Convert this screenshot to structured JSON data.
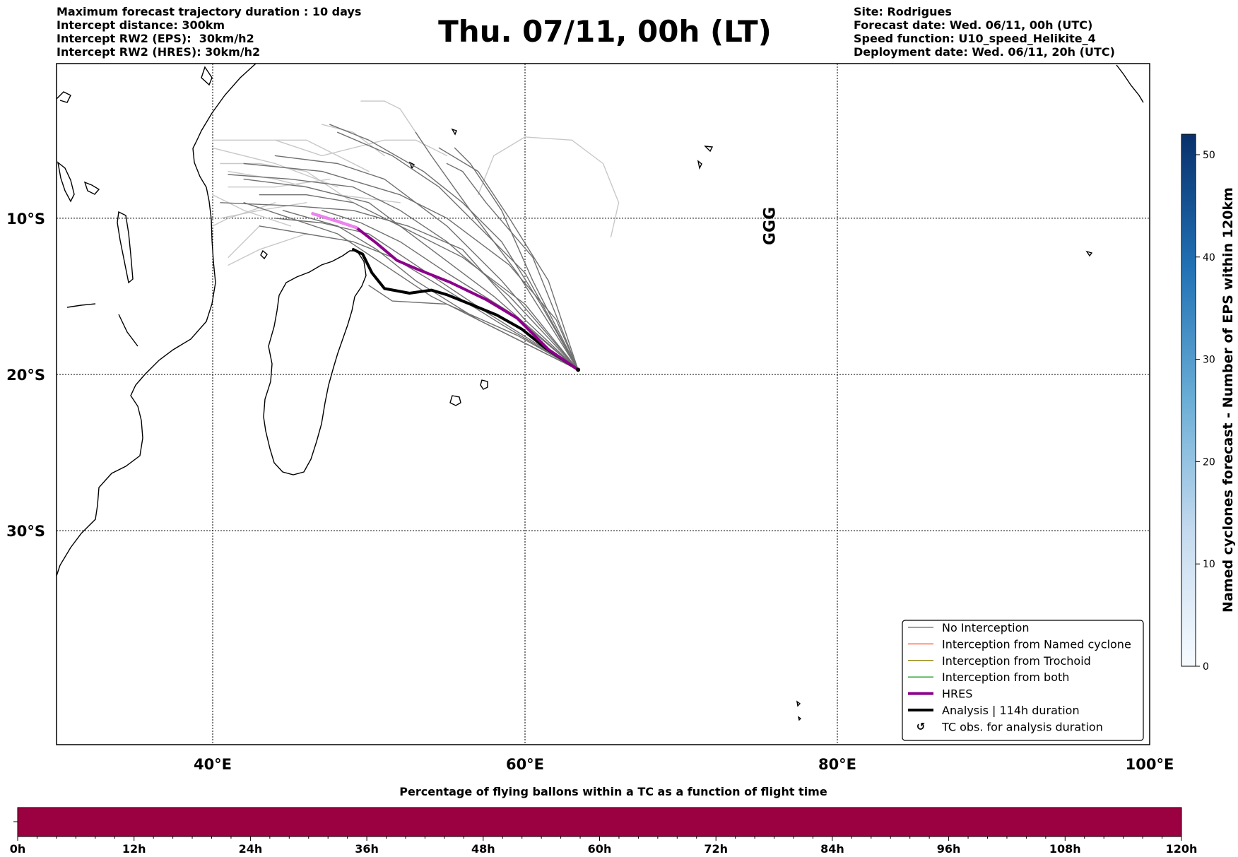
{
  "header": {
    "left_lines": [
      "Maximum forecast trajectory duration : 10 days",
      "Intercept distance: 300km",
      "Intercept RW2 (EPS):  30km/h2",
      "Intercept RW2 (HRES): 30km/h2"
    ],
    "title": "Thu. 07/11, 00h (LT)",
    "right_lines": [
      "Site: Rodrigues",
      "Forecast date: Wed. 06/11, 00h (UTC)",
      "Speed function: U10_speed_Helikite_4",
      "Deployment date: Wed. 06/11, 20h (UTC)"
    ]
  },
  "map": {
    "lon_range": [
      30,
      100
    ],
    "lat_range": [
      -43.7,
      -0.1
    ],
    "lon_ticks": [
      {
        "value": 40,
        "label": "40°E"
      },
      {
        "value": 60,
        "label": "60°E"
      },
      {
        "value": 80,
        "label": "80°E"
      },
      {
        "value": 100,
        "label": "100°E"
      }
    ],
    "lat_ticks": [
      {
        "value": -10,
        "label": "10°S"
      },
      {
        "value": -20,
        "label": "20°S"
      },
      {
        "value": -30,
        "label": "30°S"
      }
    ],
    "deployment_site": {
      "lon": 63.4,
      "lat": -19.7
    },
    "hres_track": [
      [
        63.4,
        -19.7
      ],
      [
        61.5,
        -18.4
      ],
      [
        59.5,
        -16.4
      ],
      [
        57.5,
        -15.2
      ],
      [
        55.2,
        -14.1
      ],
      [
        53.2,
        -13.3
      ],
      [
        51.8,
        -12.7
      ],
      [
        50.5,
        -11.6
      ],
      [
        49.2,
        -10.6
      ],
      [
        48.0,
        -10.2
      ],
      [
        46.4,
        -9.7
      ]
    ],
    "analysis_track": [
      [
        63.4,
        -19.7
      ],
      [
        61.3,
        -18.3
      ],
      [
        59.8,
        -17.1
      ],
      [
        58.2,
        -16.2
      ],
      [
        56.5,
        -15.5
      ],
      [
        55.0,
        -14.9
      ],
      [
        54.0,
        -14.6
      ],
      [
        52.6,
        -14.8
      ],
      [
        51.0,
        -14.5
      ],
      [
        50.2,
        -13.5
      ],
      [
        49.6,
        -12.3
      ],
      [
        49.0,
        -12.0
      ]
    ],
    "eps_tracks": [
      [
        [
          63.4,
          -19.7
        ],
        [
          59.0,
          -15.0
        ],
        [
          55.0,
          -11.5
        ],
        [
          52.0,
          -9.5
        ],
        [
          49.0,
          -8.0
        ],
        [
          45.0,
          -7.5
        ],
        [
          41.0,
          -7.2
        ]
      ],
      [
        [
          63.4,
          -19.7
        ],
        [
          58.5,
          -14.0
        ],
        [
          55.0,
          -10.5
        ],
        [
          51.0,
          -7.5
        ],
        [
          48.0,
          -6.5
        ],
        [
          44.0,
          -6.0
        ]
      ],
      [
        [
          63.4,
          -19.7
        ],
        [
          60.0,
          -16.5
        ],
        [
          56.0,
          -12.0
        ],
        [
          52.5,
          -10.5
        ],
        [
          49.0,
          -9.5
        ],
        [
          45.0,
          -9.2
        ],
        [
          40.5,
          -9.0
        ]
      ],
      [
        [
          63.4,
          -19.7
        ],
        [
          57.5,
          -16.0
        ],
        [
          53.0,
          -13.0
        ],
        [
          50.0,
          -11.0
        ],
        [
          47.0,
          -10.3
        ],
        [
          44.0,
          -10.0
        ]
      ],
      [
        [
          63.4,
          -19.7
        ],
        [
          61.0,
          -15.5
        ],
        [
          58.5,
          -11.5
        ],
        [
          56.0,
          -9.0
        ],
        [
          53.5,
          -7.0
        ],
        [
          50.0,
          -5.0
        ],
        [
          47.5,
          -4.0
        ]
      ],
      [
        [
          63.4,
          -19.7
        ],
        [
          59.5,
          -17.5
        ],
        [
          55.0,
          -15.5
        ],
        [
          51.5,
          -15.3
        ],
        [
          50.0,
          -14.3
        ]
      ],
      [
        [
          63.4,
          -19.7
        ],
        [
          58.0,
          -17.0
        ],
        [
          54.0,
          -15.0
        ],
        [
          51.0,
          -13.0
        ],
        [
          48.0,
          -11.0
        ],
        [
          45.0,
          -10.0
        ],
        [
          42.0,
          -9.0
        ]
      ],
      [
        [
          63.4,
          -19.7
        ],
        [
          60.5,
          -14.0
        ],
        [
          58.5,
          -9.5
        ],
        [
          56.5,
          -6.5
        ],
        [
          55.5,
          -5.5
        ]
      ],
      [
        [
          63.4,
          -19.7
        ],
        [
          59.5,
          -13.5
        ],
        [
          56.5,
          -9.5
        ],
        [
          54.0,
          -6.0
        ],
        [
          53.0,
          -4.5
        ]
      ],
      [
        [
          63.4,
          -19.7
        ],
        [
          60.5,
          -12.5
        ],
        [
          57.5,
          -9.0
        ],
        [
          56.0,
          -7.0
        ],
        [
          55.0,
          -6.5
        ]
      ],
      [
        [
          63.4,
          -19.7
        ],
        [
          62.0,
          -16.5
        ],
        [
          59.0,
          -13.0
        ],
        [
          55.0,
          -10.0
        ],
        [
          52.0,
          -8.5
        ],
        [
          47.0,
          -7.0
        ],
        [
          42.0,
          -6.5
        ]
      ],
      [
        [
          63.4,
          -19.7
        ],
        [
          58.0,
          -15.0
        ],
        [
          54.0,
          -12.0
        ],
        [
          50.0,
          -9.0
        ],
        [
          46.0,
          -8.0
        ],
        [
          42.0,
          -7.5
        ]
      ],
      [
        [
          63.4,
          -19.7
        ],
        [
          60.0,
          -15.5
        ],
        [
          56.0,
          -12.5
        ],
        [
          53.0,
          -11.0
        ],
        [
          49.0,
          -9.0
        ],
        [
          46.0,
          -8.5
        ],
        [
          43.0,
          -8.5
        ]
      ],
      [
        [
          63.4,
          -19.7
        ],
        [
          59.0,
          -16.0
        ],
        [
          55.0,
          -13.5
        ],
        [
          52.0,
          -11.5
        ],
        [
          49.5,
          -10.3
        ],
        [
          47.0,
          -9.5
        ]
      ],
      [
        [
          63.4,
          -19.7
        ],
        [
          58.5,
          -16.8
        ],
        [
          54.0,
          -14.0
        ],
        [
          51.5,
          -12.5
        ],
        [
          49.0,
          -11.5
        ],
        [
          46.0,
          -11.0
        ],
        [
          43.0,
          -10.5
        ]
      ],
      [
        [
          63.4,
          -19.7
        ],
        [
          61.5,
          -14.0
        ],
        [
          59.0,
          -10.0
        ],
        [
          57.0,
          -7.0
        ],
        [
          54.5,
          -5.5
        ]
      ],
      [
        [
          63.4,
          -19.7
        ],
        [
          57.0,
          -16.5
        ],
        [
          53.0,
          -14.0
        ],
        [
          50.5,
          -12.0
        ],
        [
          48.0,
          -10.5
        ],
        [
          44.5,
          -9.5
        ]
      ],
      [
        [
          63.4,
          -19.7
        ],
        [
          60.0,
          -13.5
        ],
        [
          57.5,
          -11.0
        ],
        [
          54.5,
          -8.0
        ],
        [
          51.5,
          -6.0
        ],
        [
          48.0,
          -4.5
        ]
      ]
    ],
    "light_tracks": [
      [
        [
          45.0,
          -10.5
        ],
        [
          42.0,
          -9.5
        ],
        [
          40.0,
          -8.5
        ]
      ],
      [
        [
          48.0,
          -8.0
        ],
        [
          44.0,
          -6.5
        ],
        [
          40.0,
          -5.5
        ]
      ],
      [
        [
          50.0,
          -7.0
        ],
        [
          46.0,
          -5.0
        ],
        [
          42.0,
          -5.0
        ],
        [
          40.0,
          -5.0
        ]
      ],
      [
        [
          46.0,
          -11.0
        ],
        [
          43.0,
          -12.0
        ],
        [
          41.0,
          -13.0
        ]
      ],
      [
        [
          44.0,
          -9.0
        ],
        [
          41.0,
          -10.0
        ],
        [
          40.0,
          -10.5
        ]
      ],
      [
        [
          49.0,
          -9.0
        ],
        [
          46.0,
          -7.0
        ],
        [
          43.0,
          -6.5
        ],
        [
          40.5,
          -6.5
        ]
      ],
      [
        [
          51.0,
          -6.0
        ],
        [
          49.0,
          -4.5
        ],
        [
          47.0,
          -4.0
        ]
      ],
      [
        [
          53.0,
          -4.5
        ],
        [
          52.0,
          -3.0
        ],
        [
          51.0,
          -2.5
        ],
        [
          49.5,
          -2.5
        ]
      ],
      [
        [
          55.0,
          -6.0
        ],
        [
          53.0,
          -5.0
        ],
        [
          51.0,
          -5.0
        ],
        [
          47.0,
          -6.0
        ],
        [
          44.0,
          -5.0
        ]
      ],
      [
        [
          57.0,
          -8.5
        ],
        [
          58.0,
          -6.0
        ],
        [
          60.0,
          -4.8
        ],
        [
          63.0,
          -5.0
        ],
        [
          65.0,
          -6.5
        ],
        [
          66.0,
          -9.0
        ],
        [
          65.5,
          -11.2
        ]
      ],
      [
        [
          47.5,
          -7.5
        ],
        [
          44.0,
          -8.0
        ],
        [
          41.0,
          -8.0
        ]
      ],
      [
        [
          52.0,
          -9.0
        ],
        [
          48.0,
          -8.5
        ],
        [
          44.0,
          -7.5
        ],
        [
          41.0,
          -7.0
        ]
      ],
      [
        [
          46.0,
          -9.0
        ],
        [
          43.0,
          -9.5
        ],
        [
          40.5,
          -10.0
        ]
      ],
      [
        [
          43.0,
          -10.5
        ],
        [
          42.0,
          -11.5
        ],
        [
          41.0,
          -12.5
        ]
      ]
    ],
    "tc_symbol": {
      "lon": 76.0,
      "lat": -10.5,
      "text": "GGG"
    }
  },
  "legend": {
    "items": [
      {
        "label": "No Interception",
        "color": "#808080",
        "width": 1.5,
        "kind": "line"
      },
      {
        "label": "Interception from Named cyclone",
        "color": "#ff6a3d",
        "width": 1.5,
        "kind": "line"
      },
      {
        "label": "Interception from Trochoid",
        "color": "#9a8a1a",
        "width": 1.5,
        "kind": "line"
      },
      {
        "label": "Interception from both",
        "color": "#2ca02c",
        "width": 1.5,
        "kind": "line"
      },
      {
        "label": "HRES",
        "color": "#8b008b",
        "width": 4,
        "kind": "line"
      },
      {
        "label": "Analysis | 114h duration",
        "color": "#000000",
        "width": 4,
        "kind": "line"
      },
      {
        "label": "TC obs. for analysis duration",
        "color": "#000000",
        "width": 0,
        "kind": "symbol"
      }
    ]
  },
  "colorbar": {
    "label": "Named cyclones forecast - Number of EPS within 120km",
    "min": 0,
    "max": 52,
    "ticks": [
      0,
      10,
      20,
      30,
      40,
      50
    ],
    "colors": [
      "#f7fbff",
      "#c6dbef",
      "#6baed6",
      "#2171b5",
      "#08306b"
    ]
  },
  "bottom_bar": {
    "title": "Percentage of flying ballons within a TC as a function of flight time",
    "color": "#9b0040",
    "ticks": [
      "0h",
      "12h",
      "24h",
      "36h",
      "48h",
      "60h",
      "72h",
      "84h",
      "96h",
      "108h",
      "120h"
    ]
  }
}
